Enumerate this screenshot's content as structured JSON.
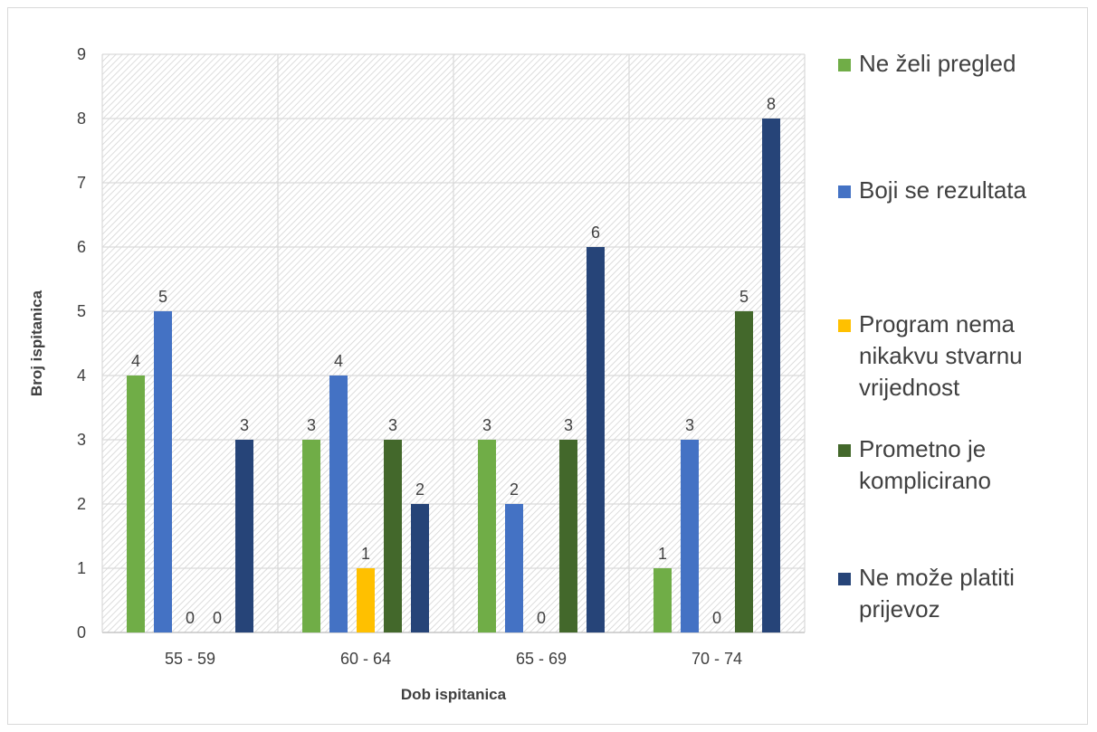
{
  "chart_data": {
    "type": "bar",
    "title": "",
    "xlabel": "Dob ispitanica",
    "ylabel": "Broj ispitanica",
    "categories": [
      "55 - 59",
      "60 - 64",
      "65 - 69",
      "70 - 74"
    ],
    "ylim": [
      0,
      9
    ],
    "yticks": [
      "0",
      "1",
      "2",
      "3",
      "4",
      "5",
      "6",
      "7",
      "8",
      "9"
    ],
    "grid": true,
    "legend_position": "right",
    "series": [
      {
        "name": "Ne želi pregled",
        "legend_lines": [
          "Ne želi pregled"
        ],
        "color": "#70ad47",
        "values": [
          4,
          3,
          3,
          1
        ]
      },
      {
        "name": "Boji se rezultata",
        "legend_lines": [
          "Boji se rezultata"
        ],
        "color": "#4472c4",
        "values": [
          5,
          4,
          2,
          3
        ]
      },
      {
        "name": "Program nema nikakvu stvarnu vrijednost",
        "legend_lines": [
          "Program nema",
          "nikakvu stvarnu",
          "vrijednost"
        ],
        "color": "#ffc000",
        "values": [
          0,
          1,
          0,
          0
        ]
      },
      {
        "name": "Prometno je komplicirano",
        "legend_lines": [
          "Prometno je",
          "komplicirano"
        ],
        "color": "#43682b",
        "values": [
          0,
          3,
          3,
          5
        ]
      },
      {
        "name": "Ne može platiti prijevoz",
        "legend_lines": [
          "Ne može platiti",
          "prijevoz"
        ],
        "color": "#264478",
        "values": [
          3,
          2,
          6,
          8
        ]
      }
    ]
  }
}
